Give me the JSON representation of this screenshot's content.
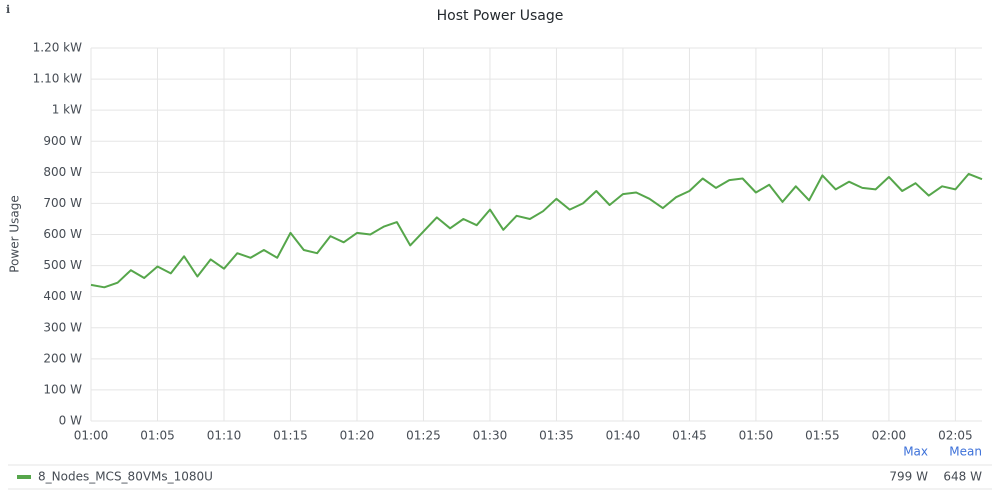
{
  "chart_data": {
    "type": "line",
    "title": "Host Power Usage",
    "ylabel": "Power Usage",
    "x": [
      "01:00",
      "01:01",
      "01:02",
      "01:03",
      "01:04",
      "01:05",
      "01:06",
      "01:07",
      "01:08",
      "01:09",
      "01:10",
      "01:11",
      "01:12",
      "01:13",
      "01:14",
      "01:15",
      "01:16",
      "01:17",
      "01:18",
      "01:19",
      "01:20",
      "01:21",
      "01:22",
      "01:23",
      "01:24",
      "01:25",
      "01:26",
      "01:27",
      "01:28",
      "01:29",
      "01:30",
      "01:31",
      "01:32",
      "01:33",
      "01:34",
      "01:35",
      "01:36",
      "01:37",
      "01:38",
      "01:39",
      "01:40",
      "01:41",
      "01:42",
      "01:43",
      "01:44",
      "01:45",
      "01:46",
      "01:47",
      "01:48",
      "01:49",
      "01:50",
      "01:51",
      "01:52",
      "01:53",
      "01:54",
      "01:55",
      "01:56",
      "01:57",
      "01:58",
      "01:59",
      "02:00",
      "02:01",
      "02:02",
      "02:03",
      "02:04",
      "02:05",
      "02:06",
      "02:07"
    ],
    "series": [
      {
        "name": "8_Nodes_MCS_80VMs_1080U",
        "color": "#56a64b",
        "values": [
          438,
          430,
          445,
          485,
          460,
          497,
          475,
          530,
          465,
          520,
          490,
          540,
          525,
          550,
          525,
          605,
          550,
          540,
          595,
          575,
          605,
          600,
          625,
          640,
          565,
          610,
          655,
          620,
          650,
          630,
          680,
          615,
          660,
          650,
          675,
          715,
          680,
          700,
          740,
          695,
          730,
          735,
          715,
          685,
          720,
          740,
          780,
          750,
          775,
          780,
          735,
          760,
          705,
          755,
          710,
          790,
          745,
          770,
          750,
          745,
          785,
          740,
          765,
          725,
          755,
          745,
          795,
          778
        ]
      }
    ],
    "xlim": [
      "01:00",
      "02:07"
    ],
    "xticks": [
      "01:00",
      "01:05",
      "01:10",
      "01:15",
      "01:20",
      "01:25",
      "01:30",
      "01:35",
      "01:40",
      "01:45",
      "01:50",
      "01:55",
      "02:00",
      "02:05"
    ],
    "ylim": [
      0,
      1200
    ],
    "yticks": [
      {
        "value": 0,
        "label": "0 W"
      },
      {
        "value": 100,
        "label": "100 W"
      },
      {
        "value": 200,
        "label": "200 W"
      },
      {
        "value": 300,
        "label": "300 W"
      },
      {
        "value": 400,
        "label": "400 W"
      },
      {
        "value": 500,
        "label": "500 W"
      },
      {
        "value": 600,
        "label": "600 W"
      },
      {
        "value": 700,
        "label": "700 W"
      },
      {
        "value": 800,
        "label": "800 W"
      },
      {
        "value": 900,
        "label": "900 W"
      },
      {
        "value": 1000,
        "label": "1 kW"
      },
      {
        "value": 1100,
        "label": "1.10 kW"
      },
      {
        "value": 1200,
        "label": "1.20 kW"
      }
    ],
    "grid": true,
    "legend_stats": {
      "headers": [
        "Max",
        "Mean"
      ],
      "values": [
        "799 W",
        "648 W"
      ]
    }
  }
}
